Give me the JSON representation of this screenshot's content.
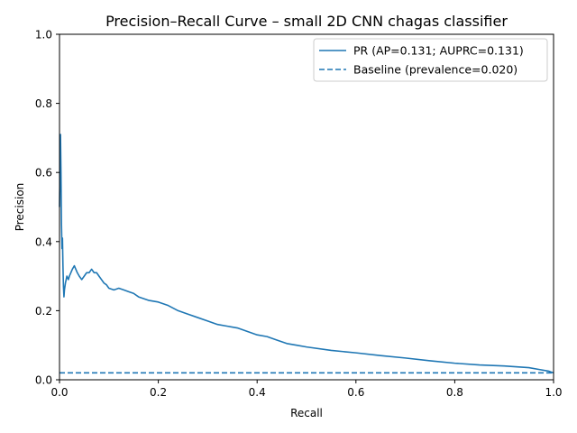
{
  "chart_data": {
    "type": "line",
    "title": "Precision–Recall Curve – small 2D CNN chagas classifier",
    "xlabel": "Recall",
    "ylabel": "Precision",
    "xlim": [
      0,
      1
    ],
    "ylim": [
      0,
      1
    ],
    "x_ticks": [
      "0.0",
      "0.2",
      "0.4",
      "0.6",
      "0.8",
      "1.0"
    ],
    "y_ticks": [
      "0.0",
      "0.2",
      "0.4",
      "0.6",
      "0.8",
      "1.0"
    ],
    "grid": false,
    "legend_position": "top-right",
    "colors": {
      "series": "#1f77b4"
    },
    "series": [
      {
        "name": "PR (AP=0.131; AUPRC=0.131)",
        "style": "solid",
        "x": [
          0.0,
          0.002,
          0.003,
          0.004,
          0.005,
          0.006,
          0.007,
          0.008,
          0.009,
          0.01,
          0.012,
          0.015,
          0.018,
          0.02,
          0.023,
          0.026,
          0.03,
          0.033,
          0.036,
          0.04,
          0.045,
          0.05,
          0.055,
          0.06,
          0.065,
          0.07,
          0.075,
          0.08,
          0.085,
          0.09,
          0.095,
          0.1,
          0.11,
          0.12,
          0.13,
          0.14,
          0.15,
          0.16,
          0.17,
          0.18,
          0.2,
          0.22,
          0.24,
          0.26,
          0.28,
          0.3,
          0.32,
          0.34,
          0.36,
          0.38,
          0.4,
          0.42,
          0.44,
          0.46,
          0.48,
          0.5,
          0.55,
          0.6,
          0.65,
          0.7,
          0.75,
          0.8,
          0.85,
          0.9,
          0.95,
          0.97,
          0.99,
          1.0
        ],
        "y": [
          0.5,
          0.71,
          0.6,
          0.45,
          0.38,
          0.41,
          0.33,
          0.27,
          0.24,
          0.26,
          0.28,
          0.3,
          0.29,
          0.3,
          0.31,
          0.32,
          0.33,
          0.32,
          0.31,
          0.3,
          0.29,
          0.3,
          0.31,
          0.31,
          0.32,
          0.31,
          0.31,
          0.3,
          0.29,
          0.28,
          0.275,
          0.265,
          0.26,
          0.265,
          0.26,
          0.255,
          0.25,
          0.24,
          0.235,
          0.23,
          0.225,
          0.215,
          0.2,
          0.19,
          0.18,
          0.17,
          0.16,
          0.155,
          0.15,
          0.14,
          0.13,
          0.125,
          0.115,
          0.105,
          0.1,
          0.095,
          0.085,
          0.078,
          0.07,
          0.063,
          0.055,
          0.048,
          0.043,
          0.04,
          0.035,
          0.03,
          0.025,
          0.02
        ]
      },
      {
        "name": "Baseline (prevalence=0.020)",
        "style": "dashed",
        "x": [
          0,
          1
        ],
        "y": [
          0.02,
          0.02
        ]
      }
    ]
  }
}
